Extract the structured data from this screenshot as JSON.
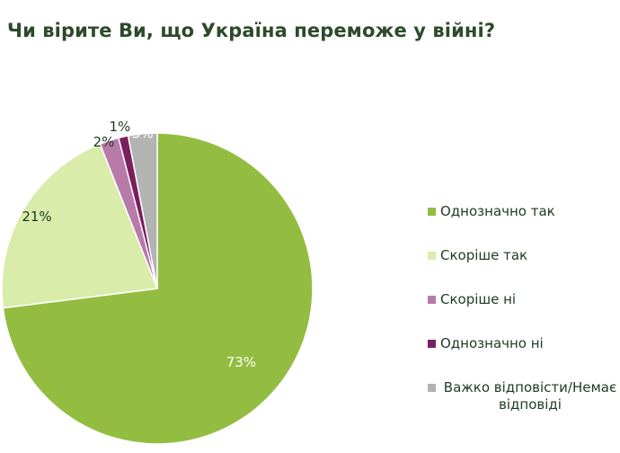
{
  "chart_data": {
    "type": "pie",
    "title": "Чи вірите Ви, що Україна переможе у війні?",
    "categories": [
      "Однозначно так",
      "Скоріше так",
      "Скоріше ні",
      "Однозначно ні",
      "Важко відповісти/Немає відповіді"
    ],
    "values": [
      73,
      21,
      2,
      1,
      3
    ],
    "labels": [
      "73%",
      "21%",
      "2%",
      "1%",
      "3%"
    ],
    "colors": [
      "#93bd41",
      "#d9ecaa",
      "#b97aaa",
      "#7b1f5f",
      "#b3b3b3"
    ],
    "legend_position": "right"
  }
}
